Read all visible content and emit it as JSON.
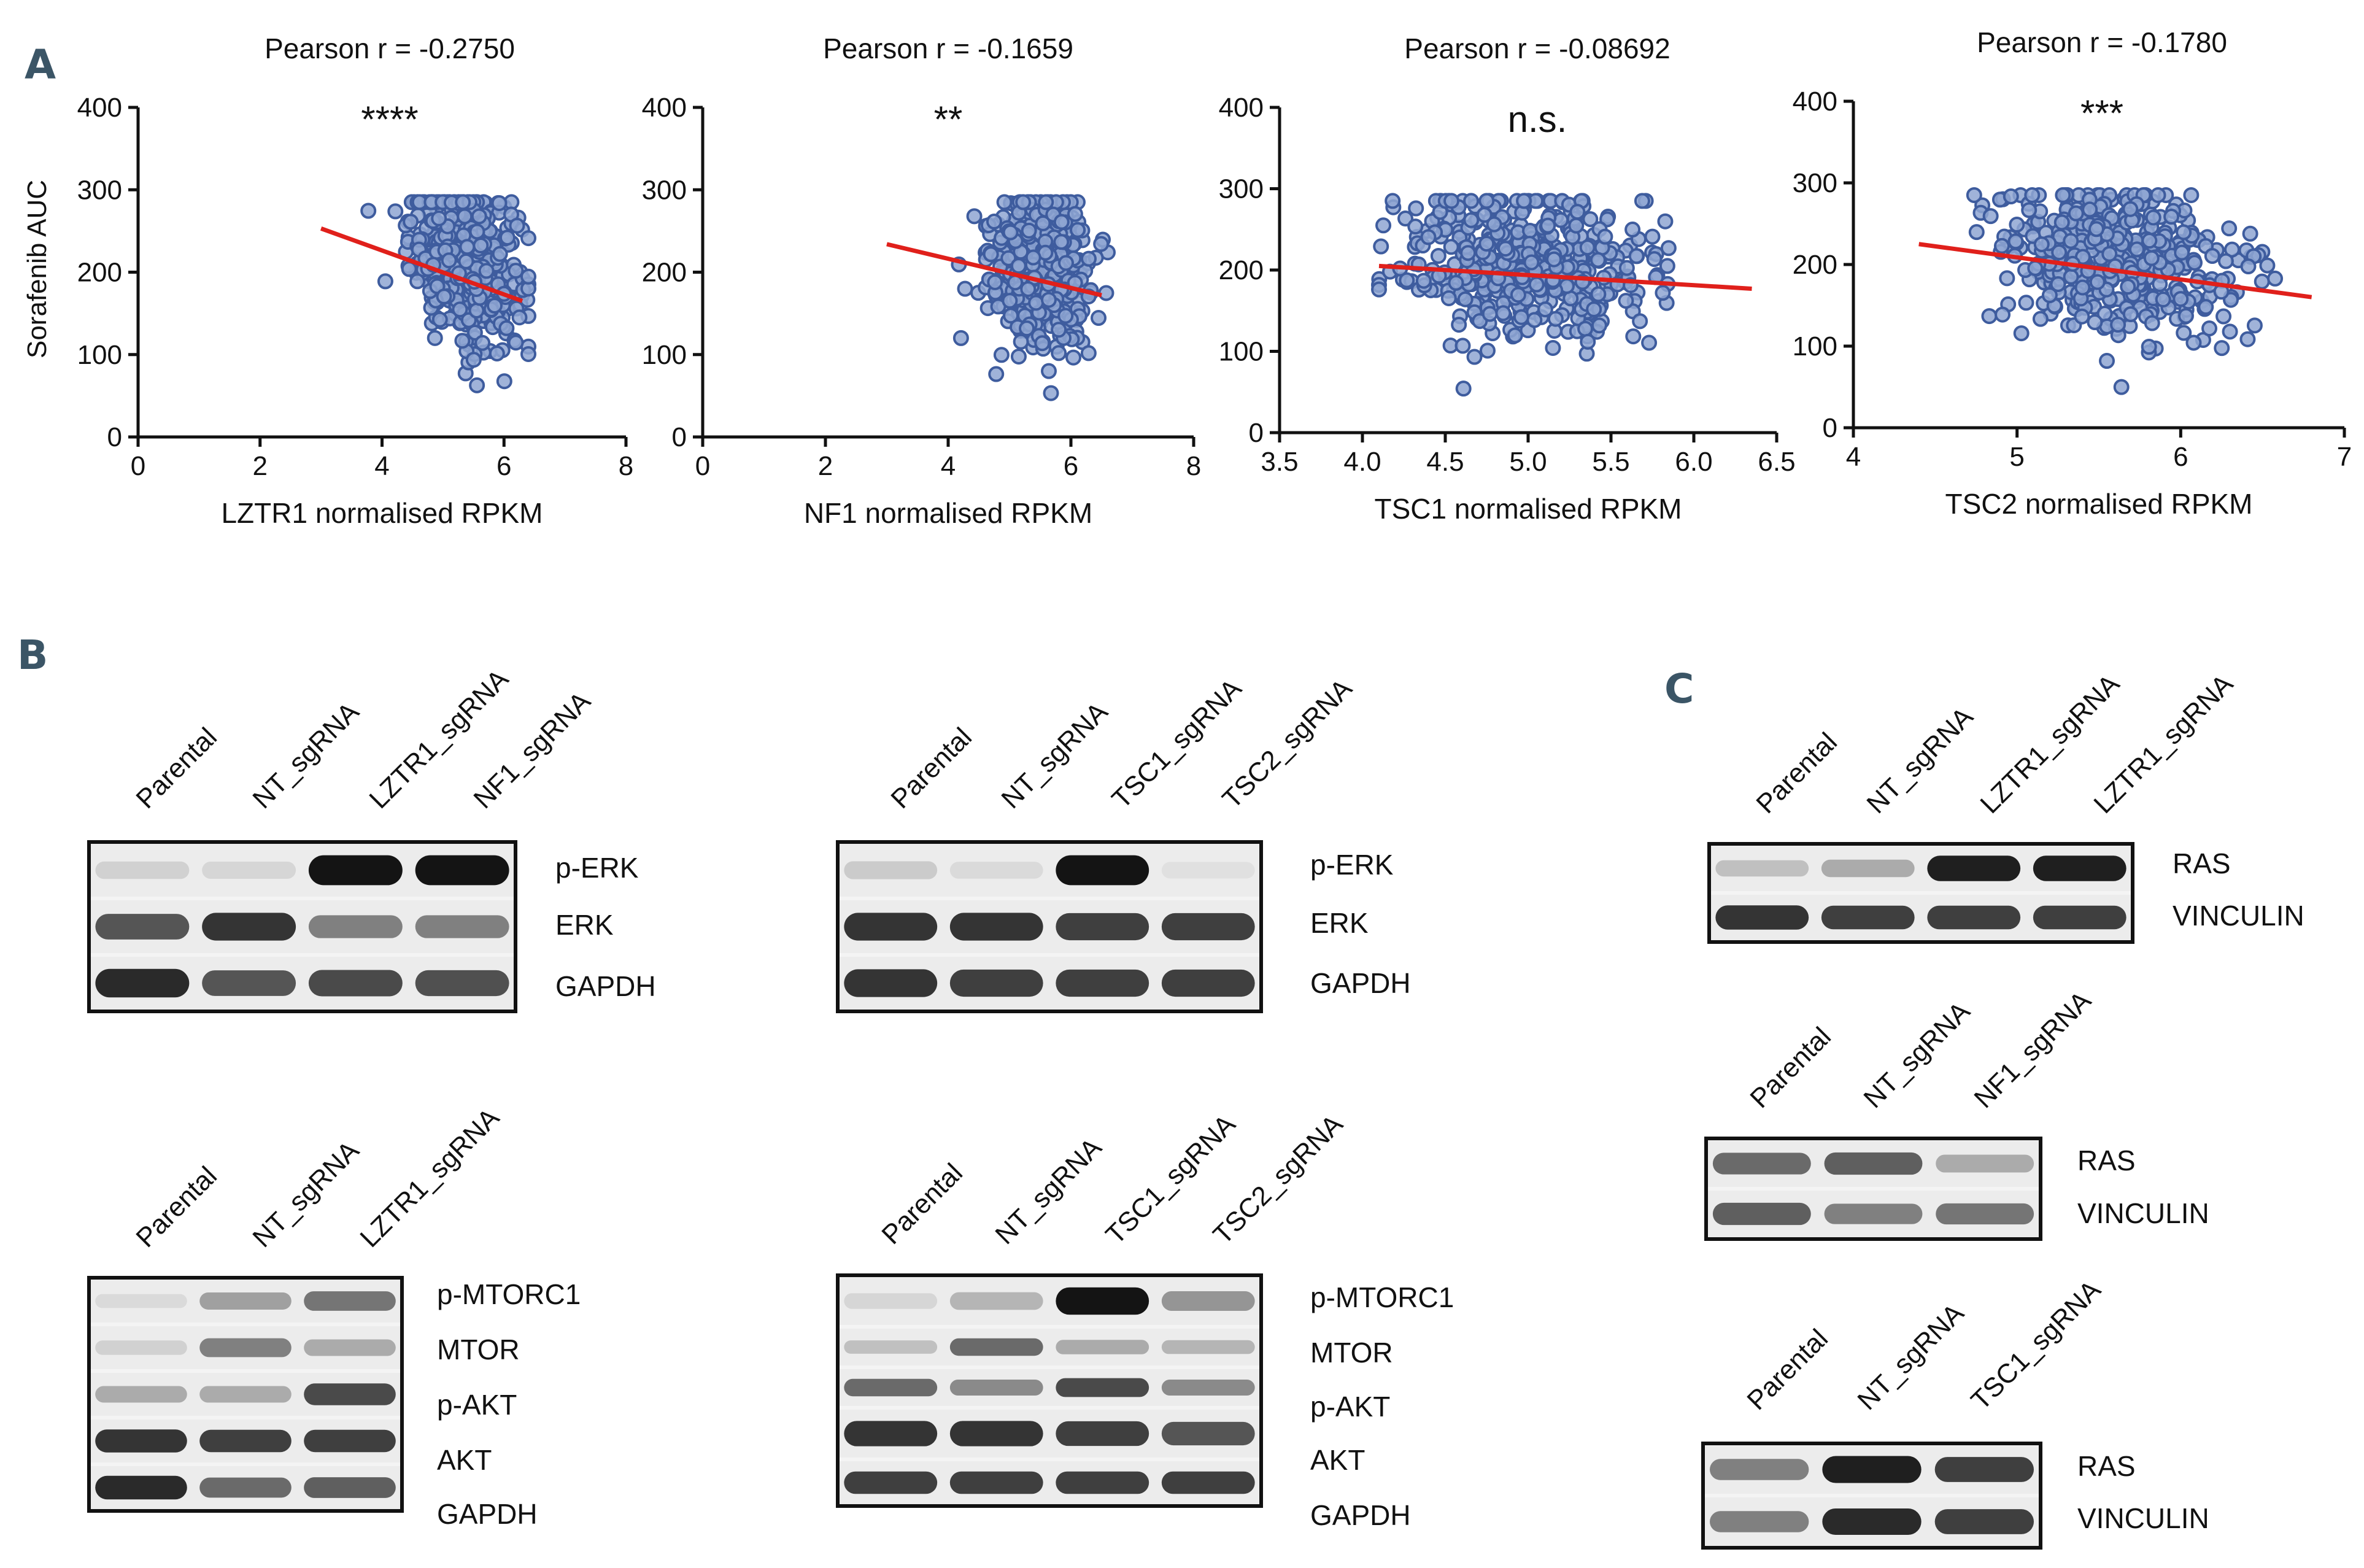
{
  "panel_labels": [
    "A",
    "B",
    "C"
  ],
  "colors": {
    "point": "#3e5c9e",
    "point_fill": "#8fa6d2",
    "fit_line": "#e0201b",
    "axis": "#111111",
    "panel_letter": "#3b5566"
  },
  "chart_data": [
    {
      "type": "scatter",
      "title": "Pearson r = -0.2750",
      "significance": "****",
      "xlabel": "LZTR1 normalised RPKM",
      "ylabel": "Sorafenib AUC",
      "xlim": [
        0,
        8
      ],
      "ylim": [
        0,
        400
      ],
      "xticks": [
        "0",
        "2",
        "4",
        "6",
        "8"
      ],
      "yticks": [
        "0",
        "100",
        "200",
        "300",
        "400"
      ],
      "fit": {
        "x": [
          3.0,
          6.3
        ],
        "y": [
          253,
          165
        ]
      },
      "n_points": 480,
      "point_cloud": {
        "x_center": 5.35,
        "x_sd": 0.45,
        "x_range": [
          2.9,
          6.4
        ],
        "y_center": 215,
        "y_sd": 48,
        "y_range": [
          40,
          285
        ]
      }
    },
    {
      "type": "scatter",
      "title": "Pearson r = -0.1659",
      "significance": "**",
      "xlabel": "NF1 normalised RPKM",
      "ylabel": "",
      "xlim": [
        0,
        8
      ],
      "ylim": [
        0,
        400
      ],
      "xticks": [
        "0",
        "2",
        "4",
        "6",
        "8"
      ],
      "yticks": [
        "0",
        "100",
        "200",
        "300",
        "400"
      ],
      "fit": {
        "x": [
          3.0,
          6.5
        ],
        "y": [
          234,
          172
        ]
      },
      "n_points": 480,
      "point_cloud": {
        "x_center": 5.5,
        "x_sd": 0.4,
        "x_range": [
          3.0,
          6.6
        ],
        "y_center": 205,
        "y_sd": 47,
        "y_range": [
          38,
          285
        ]
      }
    },
    {
      "type": "scatter",
      "title": "Pearson r = -0.08692",
      "significance": "n.s.",
      "xlabel": "TSC1 normalised RPKM",
      "ylabel": "",
      "xlim": [
        3.5,
        6.5
      ],
      "ylim": [
        0,
        400
      ],
      "xticks": [
        "3.5",
        "4.0",
        "4.5",
        "5.0",
        "5.5",
        "6.0",
        "6.5"
      ],
      "yticks": [
        "0",
        "100",
        "200",
        "300",
        "400"
      ],
      "fit": {
        "x": [
          4.1,
          6.35
        ],
        "y": [
          205,
          177
        ]
      },
      "n_points": 480,
      "point_cloud": {
        "x_center": 5.0,
        "x_sd": 0.38,
        "x_range": [
          4.1,
          6.35
        ],
        "y_center": 205,
        "y_sd": 47,
        "y_range": [
          40,
          285
        ]
      }
    },
    {
      "type": "scatter",
      "title": "Pearson r = -0.1780",
      "significance": "***",
      "xlabel": "TSC2 normalised RPKM",
      "ylabel": "",
      "xlim": [
        4,
        7
      ],
      "ylim": [
        0,
        400
      ],
      "xticks": [
        "4",
        "5",
        "6",
        "7"
      ],
      "yticks": [
        "0",
        "100",
        "200",
        "300",
        "400"
      ],
      "fit": {
        "x": [
          4.4,
          6.8
        ],
        "y": [
          225,
          160
        ]
      },
      "n_points": 480,
      "point_cloud": {
        "x_center": 5.6,
        "x_sd": 0.35,
        "x_range": [
          4.4,
          6.8
        ],
        "y_center": 205,
        "y_sd": 46,
        "y_range": [
          38,
          285
        ]
      }
    }
  ],
  "blots": [
    {
      "panel": "B",
      "lanes": [
        "Parental",
        "NT_sgRNA",
        "LZTR1_sgRNA",
        "NF1_sgRNA"
      ],
      "rows": [
        {
          "label": "p-ERK",
          "intensity": [
            0.12,
            0.1,
            1.0,
            1.0
          ]
        },
        {
          "label": "ERK",
          "intensity": [
            0.7,
            0.85,
            0.5,
            0.5
          ]
        },
        {
          "label": "GAPDH",
          "intensity": [
            0.9,
            0.7,
            0.75,
            0.72
          ]
        }
      ]
    },
    {
      "panel": "B",
      "lanes": [
        "Parental",
        "NT_sgRNA",
        "TSC1_sgRNA",
        "TSC2_sgRNA"
      ],
      "rows": [
        {
          "label": "p-ERK",
          "intensity": [
            0.15,
            0.08,
            1.0,
            0.05
          ]
        },
        {
          "label": "ERK",
          "intensity": [
            0.85,
            0.85,
            0.8,
            0.8
          ]
        },
        {
          "label": "GAPDH",
          "intensity": [
            0.85,
            0.8,
            0.8,
            0.8
          ]
        }
      ]
    },
    {
      "panel": "B",
      "lanes": [
        "Parental",
        "NT_sgRNA",
        "LZTR1_sgRNA"
      ],
      "rows": [
        {
          "label": "p-MTORC1",
          "intensity": [
            0.08,
            0.35,
            0.55
          ]
        },
        {
          "label": "MTOR",
          "intensity": [
            0.12,
            0.5,
            0.3
          ]
        },
        {
          "label": "p-AKT",
          "intensity": [
            0.3,
            0.3,
            0.75
          ]
        },
        {
          "label": "AKT",
          "intensity": [
            0.85,
            0.8,
            0.8
          ]
        },
        {
          "label": "GAPDH",
          "intensity": [
            0.9,
            0.6,
            0.65
          ]
        }
      ]
    },
    {
      "panel": "B",
      "lanes": [
        "Parental",
        "NT_sgRNA",
        "TSC1_sgRNA",
        "TSC2_sgRNA"
      ],
      "rows": [
        {
          "label": "p-MTORC1",
          "intensity": [
            0.1,
            0.25,
            1.0,
            0.4
          ]
        },
        {
          "label": "MTOR",
          "intensity": [
            0.2,
            0.6,
            0.3,
            0.25
          ]
        },
        {
          "label": "p-AKT",
          "intensity": [
            0.6,
            0.45,
            0.75,
            0.45
          ]
        },
        {
          "label": "AKT",
          "intensity": [
            0.85,
            0.85,
            0.8,
            0.7
          ]
        },
        {
          "label": "GAPDH",
          "intensity": [
            0.8,
            0.8,
            0.8,
            0.8
          ]
        }
      ]
    },
    {
      "panel": "C",
      "lanes": [
        "Parental",
        "NT_sgRNA",
        "LZTR1_sgRNA",
        "LZTR1_sgRNA"
      ],
      "rows": [
        {
          "label": "RAS",
          "intensity": [
            0.2,
            0.3,
            0.95,
            0.95
          ]
        },
        {
          "label": "VINCULIN",
          "intensity": [
            0.85,
            0.8,
            0.8,
            0.8
          ]
        }
      ]
    },
    {
      "panel": "C",
      "lanes": [
        "Parental",
        "NT_sgRNA",
        "NF1_sgRNA"
      ],
      "rows": [
        {
          "label": "RAS",
          "intensity": [
            0.6,
            0.65,
            0.3
          ]
        },
        {
          "label": "VINCULIN",
          "intensity": [
            0.65,
            0.5,
            0.55
          ]
        }
      ]
    },
    {
      "panel": "C",
      "lanes": [
        "Parental",
        "NT_sgRNA",
        "TSC1_sgRNA"
      ],
      "rows": [
        {
          "label": "RAS",
          "intensity": [
            0.5,
            0.95,
            0.8
          ]
        },
        {
          "label": "VINCULIN",
          "intensity": [
            0.5,
            0.9,
            0.8
          ]
        }
      ]
    }
  ]
}
